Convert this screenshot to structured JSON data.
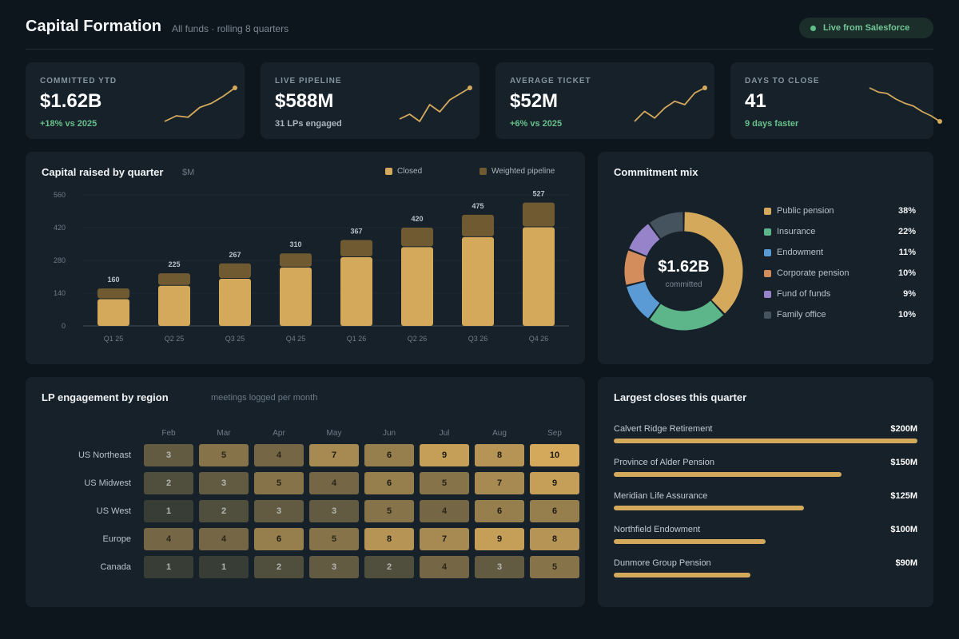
{
  "header": {
    "title": "Capital Formation",
    "subtitle": "All funds · rolling 8 quarters",
    "status": "Live from Salesforce",
    "status_color": "#5fbf8a"
  },
  "kpis": [
    {
      "label": "COMMITTED YTD",
      "value": "$1.62B",
      "sub": "+18% vs 2025",
      "sub_tone": "positive"
    },
    {
      "label": "LIVE PIPELINE",
      "value": "$588M",
      "sub": "31 LPs engaged",
      "sub_tone": "neutral"
    },
    {
      "label": "AVERAGE TICKET",
      "value": "$52M",
      "sub": "+6% vs 2025",
      "sub_tone": "positive"
    },
    {
      "label": "DAYS TO CLOSE",
      "value": "41",
      "sub": "9 days faster",
      "sub_tone": "positive"
    }
  ],
  "capital_chart": {
    "title": "Capital raised by quarter",
    "unit": "$M",
    "legend": {
      "closed": "Closed",
      "pipeline": "Weighted pipeline"
    }
  },
  "commitment_mix": {
    "title": "Commitment mix",
    "center_value": "$1.62B",
    "center_label": "committed"
  },
  "engagement": {
    "title": "LP engagement by region",
    "subtitle": "meetings logged per month",
    "months": [
      "Feb",
      "Mar",
      "Apr",
      "May",
      "Jun",
      "Jul",
      "Aug",
      "Sep"
    ],
    "rows": [
      {
        "region": "US Northeast",
        "values": [
          3,
          5,
          4,
          7,
          6,
          9,
          8,
          10
        ]
      },
      {
        "region": "US Midwest",
        "values": [
          2,
          3,
          5,
          4,
          6,
          5,
          7,
          9
        ]
      },
      {
        "region": "US West",
        "values": [
          1,
          2,
          3,
          3,
          5,
          4,
          6,
          6
        ]
      },
      {
        "region": "Europe",
        "values": [
          4,
          4,
          6,
          5,
          8,
          7,
          9,
          8
        ]
      },
      {
        "region": "Canada",
        "values": [
          1,
          1,
          2,
          3,
          2,
          4,
          3,
          5
        ]
      }
    ]
  },
  "largest_closes": {
    "title": "Largest closes this quarter",
    "items": [
      {
        "name": "Calvert Ridge Retirement",
        "amount": "$200M",
        "value": 200
      },
      {
        "name": "Province of Alder Pension",
        "amount": "$150M",
        "value": 150
      },
      {
        "name": "Meridian Life Assurance",
        "amount": "$125M",
        "value": 125
      },
      {
        "name": "Northfield Endowment",
        "amount": "$100M",
        "value": 100
      },
      {
        "name": "Dunmore Group Pension",
        "amount": "$90M",
        "value": 90
      }
    ]
  },
  "colors": {
    "closed": "#d4a95c",
    "pipeline": "#6f5a32",
    "accent": "#d4a95c",
    "positive": "#69c08b"
  },
  "chart_data": [
    {
      "type": "bar",
      "title": "Capital raised by quarter",
      "ylabel": "$M",
      "categories": [
        "Q1 25",
        "Q2 25",
        "Q3 25",
        "Q4 25",
        "Q1 26",
        "Q2 26",
        "Q3 26",
        "Q4 26"
      ],
      "series": [
        {
          "name": "Closed",
          "values": [
            118,
            175,
            205,
            253,
            297,
            340,
            383,
            425
          ]
        },
        {
          "name": "Weighted pipeline",
          "values": [
            42,
            50,
            62,
            57,
            70,
            80,
            92,
            102
          ]
        }
      ],
      "totals": [
        160,
        225,
        267,
        310,
        367,
        420,
        475,
        527
      ],
      "yticks": [
        0,
        140,
        280,
        420,
        560
      ],
      "ylim": [
        0,
        560
      ],
      "stacked": true,
      "legend": "top-right"
    },
    {
      "type": "pie",
      "title": "Commitment mix",
      "donut": true,
      "slices": [
        {
          "label": "Public pension",
          "value": 38,
          "display": "38%",
          "color": "#d4a95c"
        },
        {
          "label": "Insurance",
          "value": 22,
          "display": "22%",
          "color": "#5db58a"
        },
        {
          "label": "Endowment",
          "value": 11,
          "display": "11%",
          "color": "#5a9bd6"
        },
        {
          "label": "Corporate pension",
          "value": 10,
          "display": "10%",
          "color": "#d38d5c"
        },
        {
          "label": "Fund of funds",
          "value": 9,
          "display": "9%",
          "color": "#9683c9"
        },
        {
          "label": "Family office",
          "value": 10,
          "display": "10%",
          "color": "#45535f"
        }
      ]
    },
    {
      "type": "line",
      "title": "COMMITTED YTD",
      "values": [
        2,
        4,
        3.5,
        7,
        8.5,
        11,
        14
      ]
    },
    {
      "type": "line",
      "title": "LIVE PIPELINE",
      "values": [
        3,
        5,
        2,
        9,
        6,
        11,
        13.5,
        16
      ]
    },
    {
      "type": "line",
      "title": "AVERAGE TICKET",
      "values": [
        2,
        8,
        4,
        10,
        14,
        12,
        19,
        22
      ]
    },
    {
      "type": "line",
      "title": "DAYS TO CLOSE",
      "values": [
        60,
        57,
        56,
        52,
        49,
        47,
        43,
        40,
        36
      ]
    }
  ]
}
